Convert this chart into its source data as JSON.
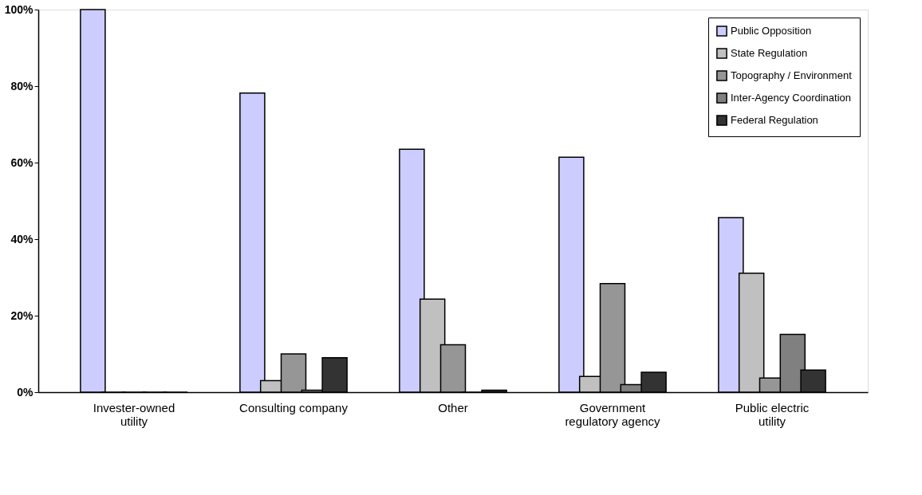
{
  "chart_data": {
    "type": "bar",
    "categories": [
      "Invester-owned utility",
      "Consulting company",
      "Other",
      "Government regulatory agency",
      "Public electric utility"
    ],
    "series": [
      {
        "name": "Public Opposition",
        "color": "#ccccff",
        "values": [
          100,
          78.2,
          63.5,
          61.4,
          45.6
        ]
      },
      {
        "name": "State Regulation",
        "color": "#c0c0c0",
        "values": [
          0,
          3,
          24.3,
          4.1,
          31.1
        ]
      },
      {
        "name": "Topography / Environment",
        "color": "#969696",
        "values": [
          0,
          10,
          12.4,
          28.4,
          3.7
        ]
      },
      {
        "name": "Inter-Agency Coordination",
        "color": "#808080",
        "values": [
          0,
          0.5,
          0,
          2,
          15.1
        ]
      },
      {
        "name": "Federal Regulation",
        "color": "#333333",
        "values": [
          0,
          9,
          0.5,
          5.2,
          5.8
        ]
      }
    ],
    "ylim": [
      0,
      100
    ],
    "yticks": [
      {
        "value": 0,
        "label": "0%"
      },
      {
        "value": 20,
        "label": "20%"
      },
      {
        "value": 40,
        "label": "40%"
      },
      {
        "value": 60,
        "label": "60%"
      },
      {
        "value": 80,
        "label": "80%"
      },
      {
        "value": 100,
        "label": "100%"
      }
    ],
    "grid": false,
    "legend": "top right"
  }
}
